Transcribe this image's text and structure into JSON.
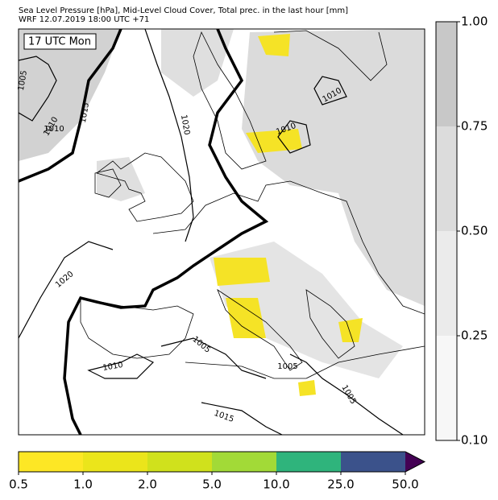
{
  "header": {
    "line1": "Sea Level Pressure [hPa], Mid-Level Cloud Cover, Total prec. in the last hour [mm]",
    "line2": "WRF 12.07.2019 18:00 UTC +71"
  },
  "map": {
    "time_label": "17 UTC Mon",
    "isobar_labels": [
      "1005",
      "1010",
      "1015",
      "1020",
      "1020",
      "1010",
      "1010",
      "1010",
      "1010",
      "1005",
      "1005",
      "1005",
      "1015"
    ]
  },
  "precip_colorbar": {
    "ticks": [
      "0.5",
      "1.0",
      "2.0",
      "5.0",
      "10.0",
      "25.0",
      "50.0"
    ],
    "colors": [
      "#fde725",
      "#ebe51b",
      "#d0e11c",
      "#a2da37",
      "#2fb47c",
      "#3b528b",
      "#440154"
    ]
  },
  "cloud_colorbar": {
    "ticks": [
      "0.10",
      "0.25",
      "0.50",
      "0.75",
      "1.00"
    ],
    "colors": [
      "#f7f7f7",
      "#ebebeb",
      "#dcdcdc",
      "#c8c8c8"
    ]
  }
}
